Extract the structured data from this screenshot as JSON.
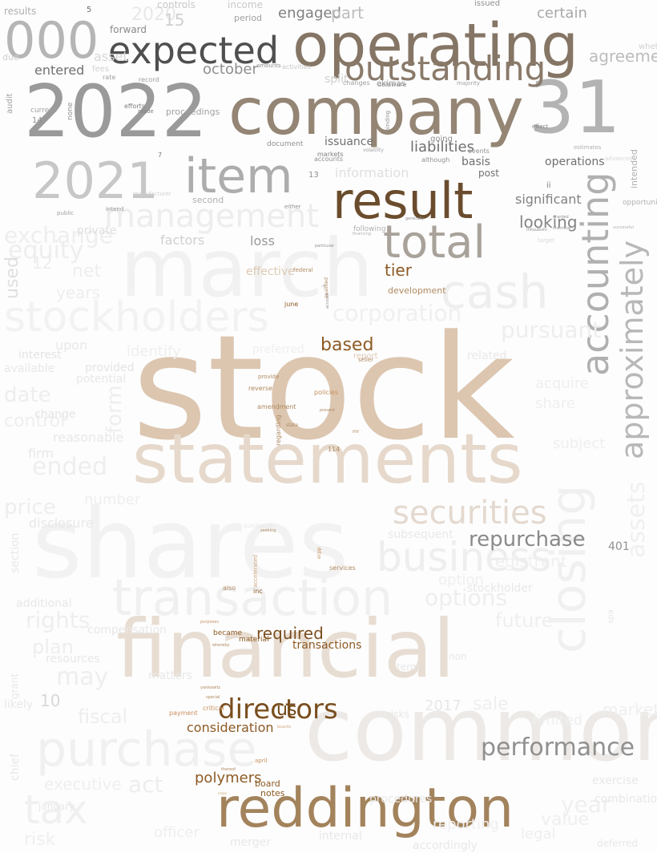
{
  "words": [
    {
      "text": "stock",
      "color": "#dcc6b0"
    },
    {
      "text": "shares",
      "color": "#f2f2f2"
    },
    {
      "text": "common",
      "color": "#ece9e6"
    },
    {
      "text": "financial",
      "color": "#e8ddd2"
    },
    {
      "text": "statements",
      "color": "#e6d9cc"
    },
    {
      "text": "march",
      "color": "#f1f1f1"
    },
    {
      "text": "company",
      "color": "#948574"
    },
    {
      "text": "2022",
      "color": "#9a9a9a"
    },
    {
      "text": "31",
      "color": "#b3b3b3"
    },
    {
      "text": "operating",
      "color": "#857565"
    },
    {
      "text": "reddington",
      "color": "#a3835c"
    },
    {
      "text": "result",
      "color": "#6a4c2d"
    },
    {
      "text": "item",
      "color": "#adadad"
    },
    {
      "text": "2021",
      "color": "#c7c7c7"
    },
    {
      "text": "expected",
      "color": "#4f4f4f"
    },
    {
      "text": "000",
      "color": "#b5b5b5"
    },
    {
      "text": "outstanding",
      "color": "#8a7a6a"
    },
    {
      "text": "total",
      "color": "#a8a29a"
    },
    {
      "text": "accounting",
      "color": "#b0b0b0"
    },
    {
      "text": "approximately",
      "color": "#b8b8b8"
    },
    {
      "text": "closing",
      "color": "#f0f0f0"
    },
    {
      "text": "transaction",
      "color": "#f0f0f0"
    },
    {
      "text": "purchase",
      "color": "#f0f0f0"
    },
    {
      "text": "stockholders",
      "color": "#f2f2f2"
    },
    {
      "text": "management",
      "color": "#ededed"
    },
    {
      "text": "cash",
      "color": "#eeeeee"
    },
    {
      "text": "securities",
      "color": "#e4d9cf"
    },
    {
      "text": "business",
      "color": "#eeeeee"
    },
    {
      "text": "tax",
      "color": "#f0f0f0"
    },
    {
      "text": "assets",
      "color": "#f0f0f0"
    },
    {
      "text": "corporation",
      "color": "#f0f0f0"
    },
    {
      "text": "based",
      "color": "#8c5a24"
    },
    {
      "text": "directors",
      "color": "#7a4e1e"
    },
    {
      "text": "us",
      "color": "#6f4817"
    },
    {
      "text": "required",
      "color": "#7a4e1e"
    },
    {
      "text": "transactions",
      "color": "#8c5a24"
    },
    {
      "text": "consideration",
      "color": "#8c5a24"
    },
    {
      "text": "polymers",
      "color": "#8c5a24"
    },
    {
      "text": "board",
      "color": "#8c5a24"
    },
    {
      "text": "notes",
      "color": "#8c5a24"
    },
    {
      "text": "tier",
      "color": "#8c5a24"
    },
    {
      "text": "information",
      "color": "#e0e0e0"
    },
    {
      "text": "liabilities",
      "color": "#707070"
    },
    {
      "text": "basis",
      "color": "#707070"
    },
    {
      "text": "operations",
      "color": "#707070"
    },
    {
      "text": "issuance",
      "color": "#707070"
    },
    {
      "text": "post",
      "color": "#707070"
    },
    {
      "text": "significant",
      "color": "#808080"
    },
    {
      "text": "looking",
      "color": "#858585"
    },
    {
      "text": "loss",
      "color": "#9a9a9a"
    },
    {
      "text": "october",
      "color": "#8f8f8f"
    },
    {
      "text": "entered",
      "color": "#707070"
    },
    {
      "text": "forward",
      "color": "#8a8a8a"
    },
    {
      "text": "engaged",
      "color": "#808080"
    },
    {
      "text": "part",
      "color": "#bdbdbd"
    },
    {
      "text": "certain",
      "color": "#a8a8a8"
    },
    {
      "text": "agreement",
      "color": "#bdbdbd"
    },
    {
      "text": "split",
      "color": "#d0d0d0"
    },
    {
      "text": "ekimas",
      "color": "#a0a0a0"
    },
    {
      "text": "repurchase",
      "color": "#8a8a8a"
    },
    {
      "text": "options",
      "color": "#eeeeee"
    },
    {
      "text": "pursuant",
      "color": "#eeeeee"
    },
    {
      "text": "ended",
      "color": "#eeeeee"
    },
    {
      "text": "date",
      "color": "#eeeeee"
    },
    {
      "text": "equity",
      "color": "#eeeeee"
    },
    {
      "text": "exchange",
      "color": "#eeeeee"
    },
    {
      "text": "net",
      "color": "#eeeeee"
    },
    {
      "text": "form",
      "color": "#eeeeee"
    },
    {
      "text": "rights",
      "color": "#eeeeee"
    },
    {
      "text": "may",
      "color": "#eeeeee"
    },
    {
      "text": "plan",
      "color": "#eeeeee"
    },
    {
      "text": "price",
      "color": "#eeeeee"
    },
    {
      "text": "act",
      "color": "#eeeeee"
    },
    {
      "text": "fiscal",
      "color": "#eeeeee"
    },
    {
      "text": "control",
      "color": "#eeeeee"
    },
    {
      "text": "years",
      "color": "#eeeeee"
    },
    {
      "text": "future",
      "color": "#efefef"
    },
    {
      "text": "sale",
      "color": "#efefef"
    },
    {
      "text": "year",
      "color": "#efefef"
    },
    {
      "text": "value",
      "color": "#efefef"
    },
    {
      "text": "market",
      "color": "#efefef"
    },
    {
      "text": "limited",
      "color": "#efefef"
    },
    {
      "text": "risk",
      "color": "#efefef"
    },
    {
      "text": "executive",
      "color": "#efefef"
    },
    {
      "text": "officer",
      "color": "#efefef"
    },
    {
      "text": "reporting",
      "color": "#efefef"
    },
    {
      "text": "legal",
      "color": "#efefef"
    },
    {
      "text": "option",
      "color": "#efefef"
    },
    {
      "text": "registrant",
      "color": "#efefef"
    },
    {
      "text": "acquire",
      "color": "#efefef"
    },
    {
      "text": "share",
      "color": "#efefef"
    },
    {
      "text": "subject",
      "color": "#efefef"
    },
    {
      "text": "number",
      "color": "#efefef"
    },
    {
      "text": "identify",
      "color": "#efefef"
    },
    {
      "text": "preferred",
      "color": "#efefef"
    },
    {
      "text": "report",
      "color": "#dcc8b4"
    },
    {
      "text": "reverse",
      "color": "#b08a60"
    },
    {
      "text": "services",
      "color": "#b08a60"
    },
    {
      "text": "inc",
      "color": "#8c5a24"
    },
    {
      "text": "material",
      "color": "#8c5a24"
    },
    {
      "text": "became",
      "color": "#8c5a24"
    },
    {
      "text": "june",
      "color": "#8c5a24"
    },
    {
      "text": "federal",
      "color": "#b08a60"
    },
    {
      "text": "development",
      "color": "#b08a60"
    },
    {
      "text": "effective",
      "color": "#dcc8b4"
    },
    {
      "text": "used",
      "color": "#e0e0e0"
    },
    {
      "text": "12",
      "color": "#ededed"
    },
    {
      "text": "10",
      "color": "#d8d8d8"
    },
    {
      "text": "2017",
      "color": "#e8e8e8"
    },
    {
      "text": "2020",
      "color": "#e8e8e8"
    },
    {
      "text": "15",
      "color": "#d0d0d0"
    },
    {
      "text": "asset",
      "color": "#d8d8d8"
    },
    {
      "text": "13",
      "color": "#909090"
    },
    {
      "text": "5",
      "color": "#707070"
    },
    {
      "text": "results",
      "color": "#b0b0b0"
    },
    {
      "text": "controls",
      "color": "#c8c8c8"
    },
    {
      "text": "income",
      "color": "#c8c8c8"
    },
    {
      "text": "period",
      "color": "#a0a0a0"
    },
    {
      "text": "issued",
      "color": "#909090"
    },
    {
      "text": "whether",
      "color": "#d0d0d0"
    },
    {
      "text": "due",
      "color": "#d0d0d0"
    },
    {
      "text": "fees",
      "color": "#d0d0d0"
    },
    {
      "text": "rate",
      "color": "#a0a0a0"
    },
    {
      "text": "record",
      "color": "#a0a0a0"
    },
    {
      "text": "amounts",
      "color": "#909090"
    },
    {
      "text": "activities",
      "color": "#c8c8c8"
    },
    {
      "text": "changes",
      "color": "#a0a0a0"
    },
    {
      "text": "delaware",
      "color": "#909090"
    },
    {
      "text": "majority",
      "color": "#a0a0a0"
    },
    {
      "text": "proceedings",
      "color": "#a0a0a0"
    },
    {
      "text": "efforts",
      "color": "#808080"
    },
    {
      "text": "made",
      "color": "#808080"
    },
    {
      "text": "none",
      "color": "#909090"
    },
    {
      "text": "audit",
      "color": "#a0a0a0"
    },
    {
      "text": "current",
      "color": "#a0a0a0"
    },
    {
      "text": "14",
      "color": "#909090"
    },
    {
      "text": "7",
      "color": "#808080"
    },
    {
      "text": "document",
      "color": "#909090"
    },
    {
      "text": "markets",
      "color": "#808080"
    },
    {
      "text": "accounts",
      "color": "#909090"
    },
    {
      "text": "although",
      "color": "#909090"
    },
    {
      "text": "events",
      "color": "#909090"
    },
    {
      "text": "going",
      "color": "#909090"
    },
    {
      "text": "ii",
      "color": "#808080"
    },
    {
      "text": "either",
      "color": "#909090"
    },
    {
      "text": "intend",
      "color": "#909090"
    },
    {
      "text": "public",
      "color": "#a0a0a0"
    },
    {
      "text": "second",
      "color": "#b0b0b0"
    },
    {
      "text": "manufacturer",
      "color": "#d0d0d0"
    },
    {
      "text": "following",
      "color": "#b0b0b0"
    },
    {
      "text": "effect",
      "color": "#808080"
    },
    {
      "text": "estimates",
      "color": "#b0b0b0"
    },
    {
      "text": "intended",
      "color": "#b0b0b0"
    },
    {
      "text": "advanced",
      "color": "#d8d8d8"
    },
    {
      "text": "opportunities",
      "color": "#b0b0b0"
    },
    {
      "text": "target",
      "color": "#d8d8d8"
    },
    {
      "text": "factors",
      "color": "#d0d0d0"
    },
    {
      "text": "private",
      "color": "#e0e0e0"
    },
    {
      "text": "upon",
      "color": "#e8e8e8"
    },
    {
      "text": "interest",
      "color": "#e4e4e4"
    },
    {
      "text": "available",
      "color": "#e8e8e8"
    },
    {
      "text": "potential",
      "color": "#e8e8e8"
    },
    {
      "text": "provided",
      "color": "#e4e4e4"
    },
    {
      "text": "change",
      "color": "#e4e4e4"
    },
    {
      "text": "reasonable",
      "color": "#e8e8e8"
    },
    {
      "text": "firm",
      "color": "#e8e8e8"
    },
    {
      "text": "disclosure",
      "color": "#e8e8e8"
    },
    {
      "text": "section",
      "color": "#e8e8e8"
    },
    {
      "text": "additional",
      "color": "#e8e8e8"
    },
    {
      "text": "compensation",
      "color": "#e8e8e8"
    },
    {
      "text": "resources",
      "color": "#e8e8e8"
    },
    {
      "text": "matters",
      "color": "#e8e8e8"
    },
    {
      "text": "chief",
      "color": "#e8e8e8"
    },
    {
      "text": "likely",
      "color": "#e8e8e8"
    },
    {
      "text": "grant",
      "color": "#e8e8e8"
    },
    {
      "text": "january",
      "color": "#e8e8e8"
    },
    {
      "text": "merger",
      "color": "#e8e8e8"
    },
    {
      "text": "internal",
      "color": "#e8e8e8"
    },
    {
      "text": "accordingly",
      "color": "#e8e8e8"
    },
    {
      "text": "deferred",
      "color": "#e8e8e8"
    },
    {
      "text": "combination",
      "color": "#e8e8e8"
    },
    {
      "text": "exercise",
      "color": "#e8e8e8"
    },
    {
      "text": "procedures",
      "color": "#e8e8e8"
    },
    {
      "text": "subsequent",
      "color": "#e8e8e8"
    },
    {
      "text": "stockholder",
      "color": "#e8e8e8"
    },
    {
      "text": "related",
      "color": "#e8e8e8"
    },
    {
      "text": "purchased",
      "color": "#e8e8e8"
    },
    {
      "text": "april",
      "color": "#c89060"
    },
    {
      "text": "payment",
      "color": "#c89060"
    },
    {
      "text": "critical",
      "color": "#c89060"
    },
    {
      "text": "also",
      "color": "#b08a60"
    },
    {
      "text": "purposes",
      "color": "#c89060"
    },
    {
      "text": "accelerated",
      "color": "#d0a880"
    },
    {
      "text": "policies",
      "color": "#c89060"
    },
    {
      "text": "amendment",
      "color": "#b08a60"
    },
    {
      "text": "seller",
      "color": "#b08a60"
    },
    {
      "text": "provide",
      "color": "#b08a60"
    },
    {
      "text": "regarding",
      "color": "#b08a60"
    },
    {
      "text": "state",
      "color": "#b08a60"
    },
    {
      "text": "114",
      "color": "#b08a60"
    },
    {
      "text": "mr",
      "color": "#b08a60"
    },
    {
      "text": "present",
      "color": "#b08a60"
    },
    {
      "text": "qualified",
      "color": "#b08a60"
    },
    {
      "text": "whereby",
      "color": "#b08a60"
    },
    {
      "text": "yankowitz",
      "color": "#b08a60"
    },
    {
      "text": "special",
      "color": "#b08a60"
    },
    {
      "text": "thereof",
      "color": "#b08a60"
    },
    {
      "text": "make",
      "color": "#d0a880"
    },
    {
      "text": "boards",
      "color": "#d0a880"
    },
    {
      "text": "seeking",
      "color": "#b08a60"
    },
    {
      "text": "ecpp",
      "color": "#c89060"
    },
    {
      "text": "401",
      "color": "#909090"
    },
    {
      "text": "k",
      "color": "#c8c8c8"
    },
    {
      "text": "binding",
      "color": "#909090"
    },
    {
      "text": "volatility",
      "color": "#a0a0a0"
    },
    {
      "text": "mitsubishi",
      "color": "#909090"
    },
    {
      "text": "chemical",
      "color": "#909090"
    },
    {
      "text": "granted",
      "color": "#909090"
    },
    {
      "text": "generally",
      "color": "#909090"
    },
    {
      "text": "successful",
      "color": "#b0b0b0"
    },
    {
      "text": "financing",
      "color": "#b0b0b0"
    },
    {
      "text": "particular",
      "color": "#909090"
    },
    {
      "text": "account",
      "color": "#909090"
    },
    {
      "text": "performance",
      "color": "#909090"
    },
    {
      "text": "spa",
      "color": "#e8e8e8"
    },
    {
      "text": "risks",
      "color": "#e8e8e8"
    },
    {
      "text": "term",
      "color": "#e8e8e8"
    },
    {
      "text": "non",
      "color": "#e8e8e8"
    },
    {
      "text": "area",
      "color": "#e8e8e8"
    }
  ]
}
